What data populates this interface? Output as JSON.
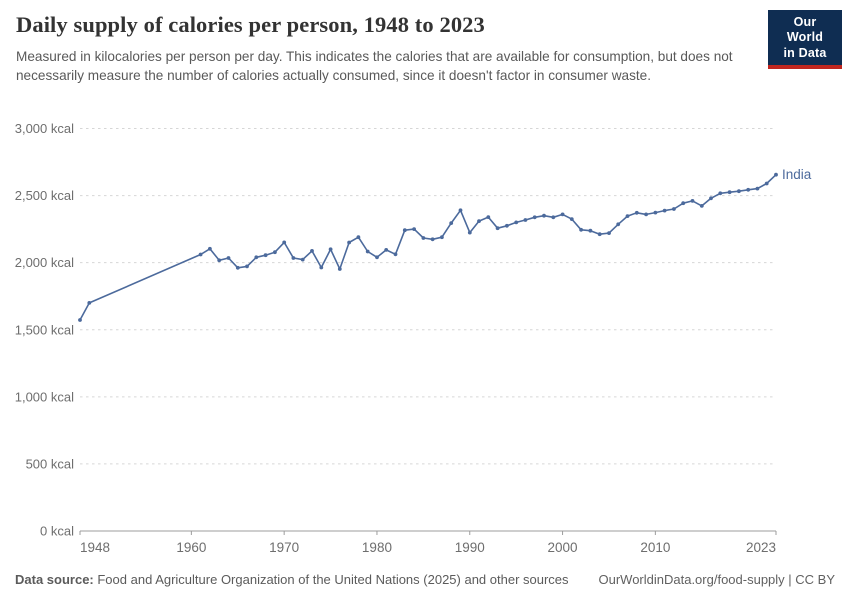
{
  "header": {
    "title": "Daily supply of calories per person, 1948 to 2023",
    "subtitle": "Measured in kilocalories per person per day. This indicates the calories that are available for consumption, but does not necessarily measure the number of calories actually consumed, since it doesn't factor in consumer waste."
  },
  "logo": {
    "line1": "Our World",
    "line2": "in Data",
    "bg_color": "#0F2D52",
    "stripe_color": "#C0261F"
  },
  "chart_data": {
    "type": "line",
    "title": "Daily supply of calories per person, 1948 to 2023",
    "unit": "kcal",
    "xlabel": "",
    "ylabel": "",
    "xlim": [
      1948,
      2023
    ],
    "ylim": [
      0,
      3000
    ],
    "grid": "horizontal-dashed",
    "legend_position": "end-of-line-label",
    "line_color": "#4C6A9C",
    "axis_text_color": "#6e6e6e",
    "y_ticks": [
      {
        "value": 0,
        "label": "0 kcal"
      },
      {
        "value": 500,
        "label": "500 kcal"
      },
      {
        "value": 1000,
        "label": "1,000 kcal"
      },
      {
        "value": 1500,
        "label": "1,500 kcal"
      },
      {
        "value": 2000,
        "label": "2,000 kcal"
      },
      {
        "value": 2500,
        "label": "2,500 kcal"
      },
      {
        "value": 3000,
        "label": "3,000 kcal"
      }
    ],
    "x_ticks": [
      {
        "value": 1948,
        "label": "1948"
      },
      {
        "value": 1960,
        "label": "1960"
      },
      {
        "value": 1970,
        "label": "1970"
      },
      {
        "value": 1980,
        "label": "1980"
      },
      {
        "value": 1990,
        "label": "1990"
      },
      {
        "value": 2000,
        "label": "2000"
      },
      {
        "value": 2010,
        "label": "2010"
      },
      {
        "value": 2023,
        "label": "2023"
      }
    ],
    "series": [
      {
        "name": "India",
        "points": [
          [
            1948,
            1573
          ],
          [
            1949,
            1700
          ],
          [
            1961,
            2061
          ],
          [
            1962,
            2103
          ],
          [
            1963,
            2018
          ],
          [
            1964,
            2035
          ],
          [
            1965,
            1962
          ],
          [
            1966,
            1972
          ],
          [
            1967,
            2040
          ],
          [
            1968,
            2056
          ],
          [
            1969,
            2078
          ],
          [
            1970,
            2151
          ],
          [
            1971,
            2035
          ],
          [
            1972,
            2023
          ],
          [
            1973,
            2088
          ],
          [
            1974,
            1964
          ],
          [
            1975,
            2100
          ],
          [
            1976,
            1953
          ],
          [
            1977,
            2150
          ],
          [
            1978,
            2190
          ],
          [
            1979,
            2083
          ],
          [
            1980,
            2040
          ],
          [
            1981,
            2095
          ],
          [
            1982,
            2062
          ],
          [
            1983,
            2242
          ],
          [
            1984,
            2250
          ],
          [
            1985,
            2184
          ],
          [
            1986,
            2174
          ],
          [
            1987,
            2190
          ],
          [
            1988,
            2295
          ],
          [
            1989,
            2390
          ],
          [
            1990,
            2224
          ],
          [
            1991,
            2310
          ],
          [
            1992,
            2340
          ],
          [
            1993,
            2257
          ],
          [
            1994,
            2275
          ],
          [
            1995,
            2300
          ],
          [
            1996,
            2318
          ],
          [
            1997,
            2338
          ],
          [
            1998,
            2350
          ],
          [
            1999,
            2338
          ],
          [
            2000,
            2360
          ],
          [
            2001,
            2325
          ],
          [
            2002,
            2245
          ],
          [
            2003,
            2238
          ],
          [
            2004,
            2212
          ],
          [
            2005,
            2220
          ],
          [
            2006,
            2286
          ],
          [
            2007,
            2347
          ],
          [
            2008,
            2372
          ],
          [
            2009,
            2360
          ],
          [
            2010,
            2373
          ],
          [
            2011,
            2388
          ],
          [
            2012,
            2400
          ],
          [
            2013,
            2443
          ],
          [
            2014,
            2460
          ],
          [
            2015,
            2423
          ],
          [
            2016,
            2480
          ],
          [
            2017,
            2517
          ],
          [
            2018,
            2525
          ],
          [
            2019,
            2533
          ],
          [
            2020,
            2543
          ],
          [
            2021,
            2552
          ],
          [
            2022,
            2590
          ],
          [
            2023,
            2656
          ]
        ]
      }
    ]
  },
  "footer": {
    "source_label": "Data source:",
    "source_text": " Food and Agriculture Organization of the United Nations (2025) and other sources",
    "credit": "OurWorldinData.org/food-supply | CC BY"
  }
}
